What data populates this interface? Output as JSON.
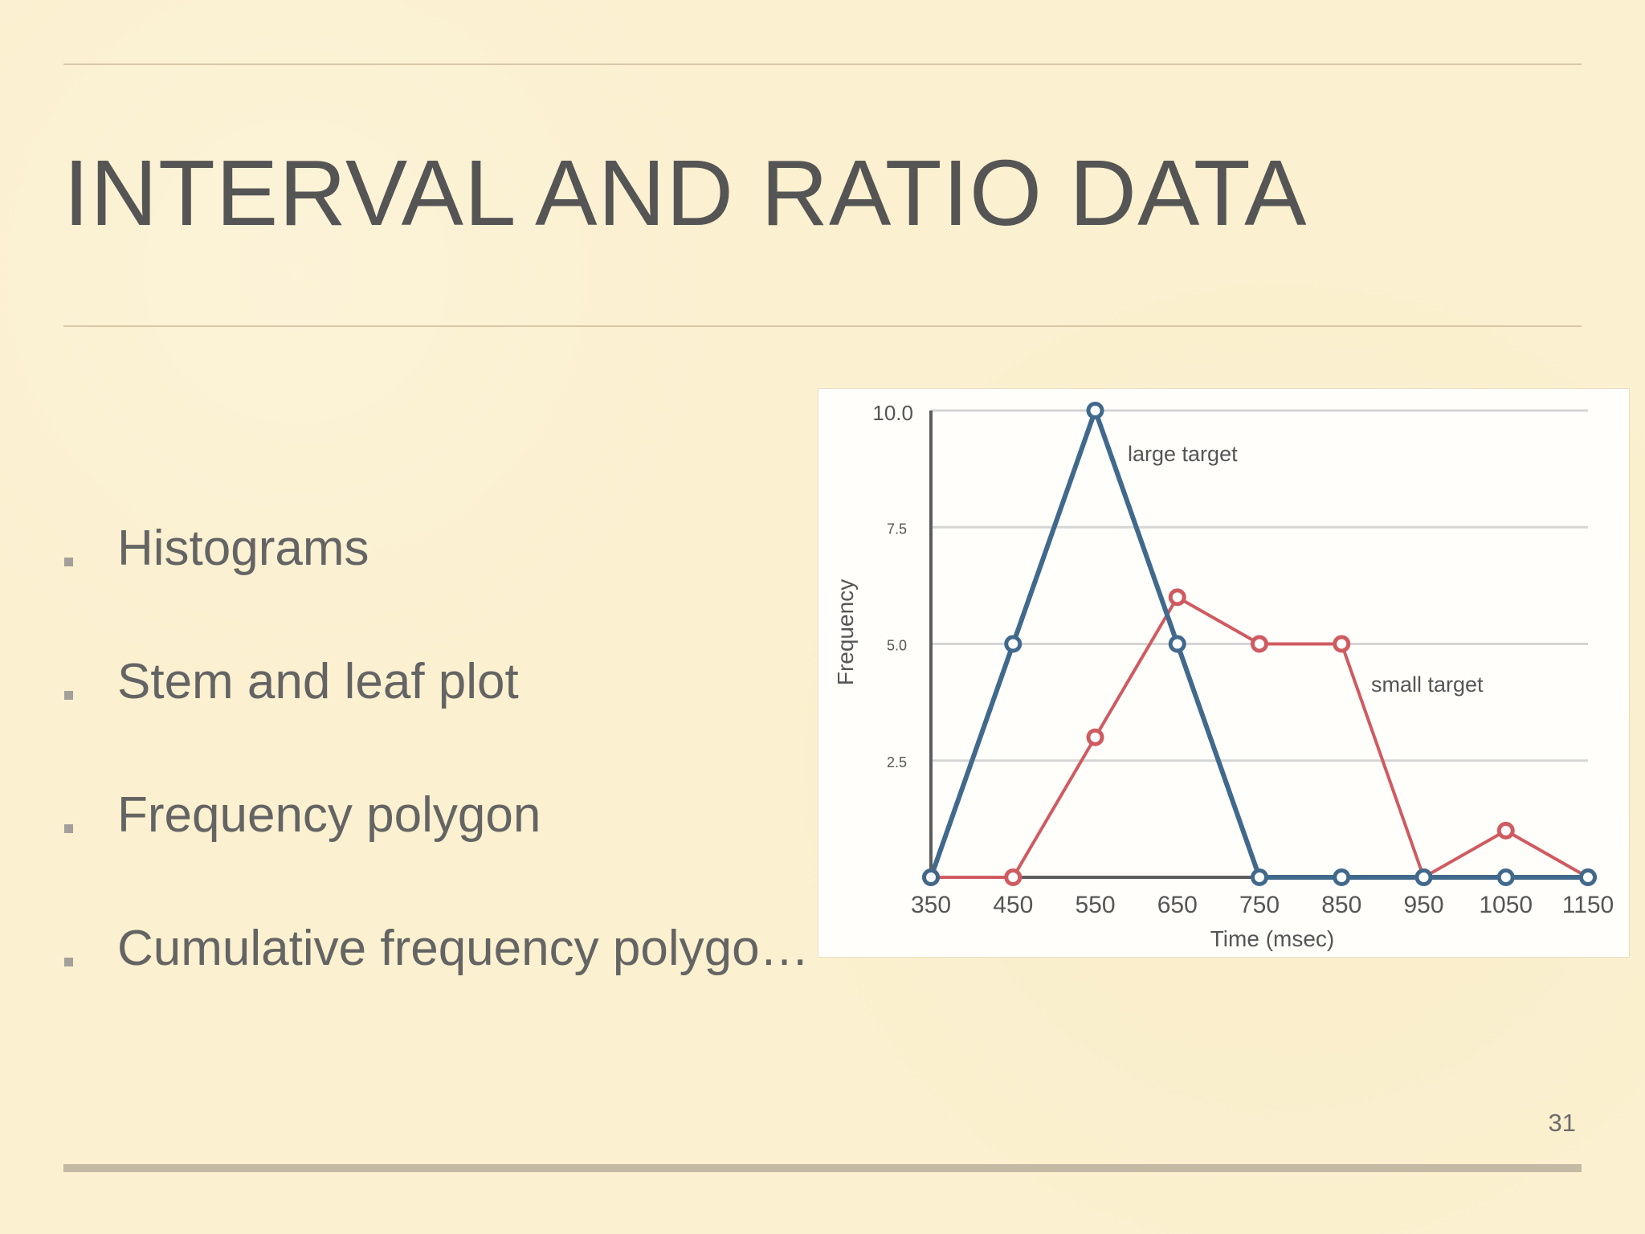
{
  "slide": {
    "title": "INTERVAL AND RATIO DATA",
    "bullets": [
      "Histograms",
      "Stem and leaf plot",
      "Frequency polygon",
      "Cumulative frequency polygo…"
    ],
    "page_number": "31"
  },
  "chart_data": {
    "type": "line",
    "x": [
      350,
      450,
      550,
      650,
      750,
      850,
      950,
      1050,
      1150
    ],
    "xlabel": "Time (msec)",
    "ylabel": "Frequency",
    "ylim": [
      0,
      10
    ],
    "y_ticks": [
      {
        "value": 2.5,
        "label": "2.5"
      },
      {
        "value": 5,
        "label": "5.0"
      },
      {
        "value": 7.5,
        "label": "7.5"
      },
      {
        "value": 10,
        "label": "10.0"
      }
    ],
    "grid": true,
    "series": [
      {
        "name": "large target",
        "color": "#41698c",
        "values": [
          0,
          5,
          10,
          5,
          0,
          0,
          0,
          0,
          0
        ]
      },
      {
        "name": "small target",
        "color": "#cf5b61",
        "values": [
          0,
          0,
          3,
          6,
          5,
          5,
          0,
          1,
          0
        ]
      }
    ]
  },
  "colors": {
    "background": "#fbf0cf",
    "text": "#646464",
    "rule": "#d8c8a8",
    "bottom_rule": "#c4b9a5"
  }
}
